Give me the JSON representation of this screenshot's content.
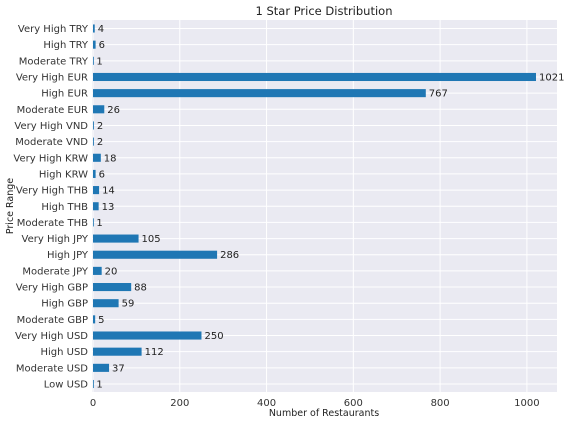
{
  "chart_data": {
    "type": "bar",
    "orientation": "horizontal",
    "title": "1 Star Price Distribution",
    "xlabel": "Number of Restaurants",
    "ylabel": "Price Range",
    "xlim": [
      0,
      1070
    ],
    "xticks": [
      0,
      200,
      400,
      600,
      800,
      1000
    ],
    "grid": true,
    "bar_color": "#1f77b4",
    "background_color": "#eaeaf2",
    "categories": [
      "Very High TRY",
      "High TRY",
      "Moderate TRY",
      "Very High EUR",
      "High EUR",
      "Moderate EUR",
      "Very High VND",
      "Moderate VND",
      "Very High KRW",
      "High KRW",
      "Very High THB",
      "High THB",
      "Moderate THB",
      "Very High JPY",
      "High JPY",
      "Moderate JPY",
      "Very High GBP",
      "High GBP",
      "Moderate GBP",
      "Very High USD",
      "High USD",
      "Moderate USD",
      "Low USD"
    ],
    "values": [
      4,
      6,
      1,
      1021,
      767,
      26,
      2,
      2,
      18,
      6,
      14,
      13,
      1,
      105,
      286,
      20,
      88,
      59,
      5,
      250,
      112,
      37,
      1
    ]
  }
}
